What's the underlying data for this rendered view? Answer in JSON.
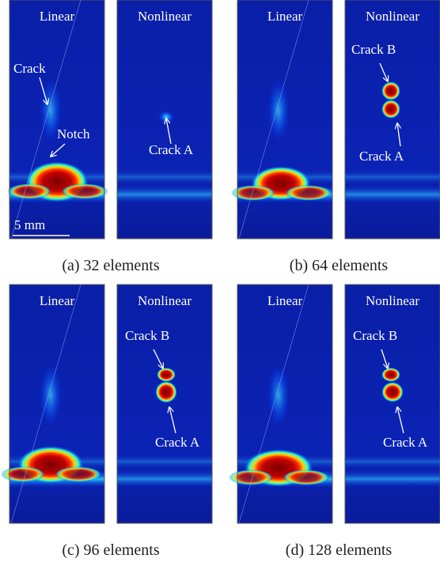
{
  "panels": [
    {
      "caption": "(a) 32 elements",
      "images": [
        {
          "label": "Linear",
          "annotations": [
            "Crack",
            "Notch"
          ],
          "scale_bar": "5 mm"
        },
        {
          "label": "Nonlinear",
          "annotations": [
            "Crack A"
          ]
        }
      ]
    },
    {
      "caption": "(b) 64 elements",
      "images": [
        {
          "label": "Linear",
          "annotations": []
        },
        {
          "label": "Nonlinear",
          "annotations": [
            "Crack B",
            "Crack A"
          ]
        }
      ]
    },
    {
      "caption": "(c) 96 elements",
      "images": [
        {
          "label": "Linear",
          "annotations": []
        },
        {
          "label": "Nonlinear",
          "annotations": [
            "Crack B",
            "Crack A"
          ]
        }
      ]
    },
    {
      "caption": "(d) 128 elements",
      "images": [
        {
          "label": "Linear",
          "annotations": []
        },
        {
          "label": "Nonlinear",
          "annotations": [
            "Crack B",
            "Crack A"
          ]
        }
      ]
    }
  ]
}
